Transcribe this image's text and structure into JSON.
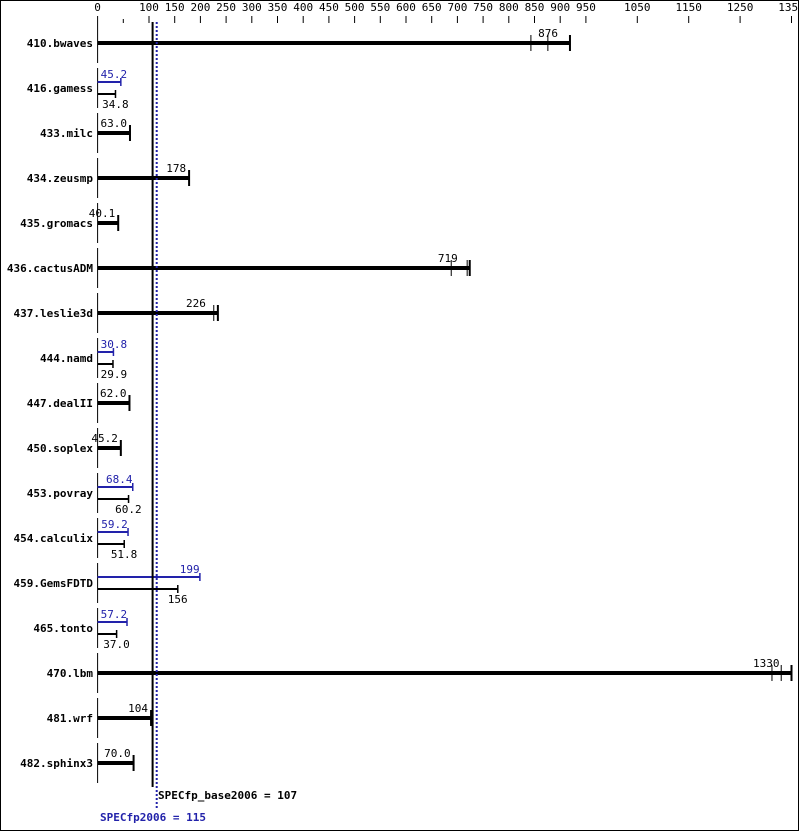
{
  "chart_data": {
    "type": "bar",
    "orientation": "horizontal",
    "xlim": [
      0,
      1360
    ],
    "x_ticks": [
      0,
      50,
      100,
      150,
      200,
      250,
      300,
      350,
      400,
      450,
      500,
      550,
      600,
      650,
      700,
      750,
      800,
      850,
      900,
      950,
      1050,
      1150,
      1250,
      1350
    ],
    "x_tick_labels": [
      "0",
      "",
      "100",
      "150",
      "200",
      "250",
      "300",
      "350",
      "400",
      "450",
      "500",
      "550",
      "600",
      "650",
      "700",
      "750",
      "800",
      "850",
      "900",
      "950",
      "1050",
      "1150",
      "1250",
      "1350"
    ],
    "series_colors": {
      "base": "#000000",
      "peak": "#2222aa"
    },
    "benchmarks": [
      {
        "name": "410.bwaves",
        "base": 876,
        "base_label": "876",
        "runs": [
          843,
          876,
          919
        ]
      },
      {
        "name": "416.gamess",
        "peak": 45.2,
        "peak_label": "45.2",
        "base": 34.8,
        "base_label": "34.8"
      },
      {
        "name": "433.milc",
        "base": 63.0,
        "base_label": "63.0"
      },
      {
        "name": "434.zeusmp",
        "base": 178,
        "base_label": "178"
      },
      {
        "name": "435.gromacs",
        "base": 40.1,
        "base_label": "40.1"
      },
      {
        "name": "436.cactusADM",
        "base": 719,
        "base_label": "719",
        "runs": [
          688,
          719,
          724
        ]
      },
      {
        "name": "437.leslie3d",
        "base": 226,
        "base_label": "226",
        "runs": [
          226,
          234
        ]
      },
      {
        "name": "444.namd",
        "peak": 30.8,
        "peak_label": "30.8",
        "base": 29.9,
        "base_label": "29.9"
      },
      {
        "name": "447.dealII",
        "base": 62.0,
        "base_label": "62.0"
      },
      {
        "name": "450.soplex",
        "base": 45.2,
        "base_label": "45.2"
      },
      {
        "name": "453.povray",
        "peak": 68.4,
        "peak_label": "68.4",
        "base": 60.2,
        "base_label": "60.2"
      },
      {
        "name": "454.calculix",
        "peak": 59.2,
        "peak_label": "59.2",
        "base": 51.8,
        "base_label": "51.8"
      },
      {
        "name": "459.GemsFDTD",
        "peak": 199,
        "peak_label": "199",
        "base": 156,
        "base_label": "156"
      },
      {
        "name": "465.tonto",
        "peak": 57.2,
        "peak_label": "57.2",
        "base": 37.0,
        "base_label": "37.0"
      },
      {
        "name": "470.lbm",
        "base": 1330,
        "base_label": "1330",
        "runs": [
          1312,
          1330,
          1350
        ]
      },
      {
        "name": "481.wrf",
        "base": 104,
        "base_label": "104"
      },
      {
        "name": "482.sphinx3",
        "base": 70.0,
        "base_label": "70.0"
      }
    ],
    "reference_lines": [
      {
        "name": "base",
        "value": 107,
        "label": "SPECfp_base2006 = 107",
        "style": "solid",
        "color": "#000000"
      },
      {
        "name": "peak",
        "value": 115,
        "label": "SPECfp2006 = 115",
        "style": "dotted",
        "color": "#2222aa"
      }
    ]
  }
}
